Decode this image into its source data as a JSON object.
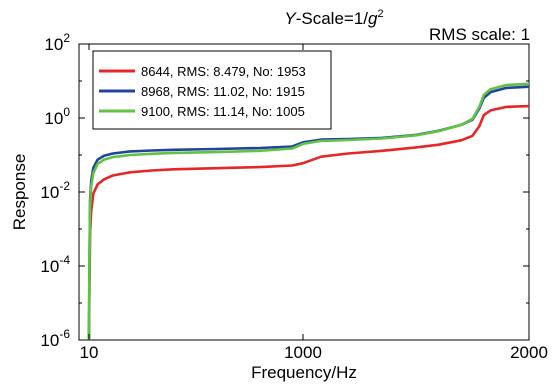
{
  "chart_data": {
    "type": "line",
    "title_prefix": "Y",
    "title_mid": "-Scale=1/",
    "title_var": "g",
    "title_exp": "2",
    "annotation": "RMS scale: 1",
    "xlabel": "Frequency/Hz",
    "ylabel": "Response",
    "x_tick_labels": [
      "10",
      "1000",
      "2000"
    ],
    "y_tick_exponents": [
      "2",
      "0",
      "-2",
      "-4",
      "-6"
    ],
    "y_tick_base": "10",
    "yscale": "log",
    "ylim": [
      1e-06,
      100
    ],
    "grid": false,
    "legend_position": "top-left",
    "series": [
      {
        "name": "8644, RMS: 8.479, No: 1953",
        "color": "#e8262a",
        "points": [
          [
            10,
            1e-06
          ],
          [
            12,
            2e-05
          ],
          [
            15,
            0.0008
          ],
          [
            20,
            0.003
          ],
          [
            30,
            0.009
          ],
          [
            50,
            0.016
          ],
          [
            80,
            0.022
          ],
          [
            120,
            0.028
          ],
          [
            200,
            0.034
          ],
          [
            300,
            0.038
          ],
          [
            400,
            0.041
          ],
          [
            600,
            0.044
          ],
          [
            800,
            0.047
          ],
          [
            950,
            0.052
          ],
          [
            1000,
            0.06
          ],
          [
            1080,
            0.09
          ],
          [
            1200,
            0.11
          ],
          [
            1350,
            0.13
          ],
          [
            1500,
            0.16
          ],
          [
            1600,
            0.19
          ],
          [
            1700,
            0.25
          ],
          [
            1750,
            0.33
          ],
          [
            1780,
            0.6
          ],
          [
            1800,
            1.2
          ],
          [
            1830,
            1.6
          ],
          [
            1900,
            2.0
          ],
          [
            2000,
            2.1
          ]
        ]
      },
      {
        "name": "8968, RMS: 11.02, No: 1915",
        "color": "#2244a0",
        "points": [
          [
            10,
            1e-06
          ],
          [
            12,
            0.0001
          ],
          [
            15,
            0.006
          ],
          [
            20,
            0.02
          ],
          [
            30,
            0.045
          ],
          [
            50,
            0.075
          ],
          [
            80,
            0.095
          ],
          [
            120,
            0.11
          ],
          [
            200,
            0.125
          ],
          [
            300,
            0.132
          ],
          [
            400,
            0.138
          ],
          [
            600,
            0.145
          ],
          [
            800,
            0.155
          ],
          [
            950,
            0.17
          ],
          [
            1000,
            0.22
          ],
          [
            1080,
            0.26
          ],
          [
            1200,
            0.27
          ],
          [
            1350,
            0.29
          ],
          [
            1500,
            0.35
          ],
          [
            1600,
            0.45
          ],
          [
            1700,
            0.65
          ],
          [
            1750,
            0.9
          ],
          [
            1780,
            1.8
          ],
          [
            1800,
            3.5
          ],
          [
            1830,
            5.0
          ],
          [
            1900,
            6.5
          ],
          [
            2000,
            7.0
          ]
        ]
      },
      {
        "name": "9100, RMS: 11.14, No: 1005",
        "color": "#62c243",
        "points": [
          [
            10,
            1e-06
          ],
          [
            12,
            0.0001
          ],
          [
            15,
            0.004
          ],
          [
            20,
            0.014
          ],
          [
            30,
            0.032
          ],
          [
            50,
            0.058
          ],
          [
            80,
            0.075
          ],
          [
            120,
            0.088
          ],
          [
            200,
            0.1
          ],
          [
            300,
            0.108
          ],
          [
            400,
            0.114
          ],
          [
            600,
            0.12
          ],
          [
            800,
            0.13
          ],
          [
            950,
            0.15
          ],
          [
            1000,
            0.2
          ],
          [
            1080,
            0.24
          ],
          [
            1200,
            0.255
          ],
          [
            1350,
            0.28
          ],
          [
            1500,
            0.34
          ],
          [
            1600,
            0.44
          ],
          [
            1700,
            0.65
          ],
          [
            1750,
            0.95
          ],
          [
            1780,
            2.0
          ],
          [
            1800,
            4.2
          ],
          [
            1830,
            6.0
          ],
          [
            1900,
            7.8
          ],
          [
            2000,
            8.4
          ]
        ]
      }
    ]
  }
}
